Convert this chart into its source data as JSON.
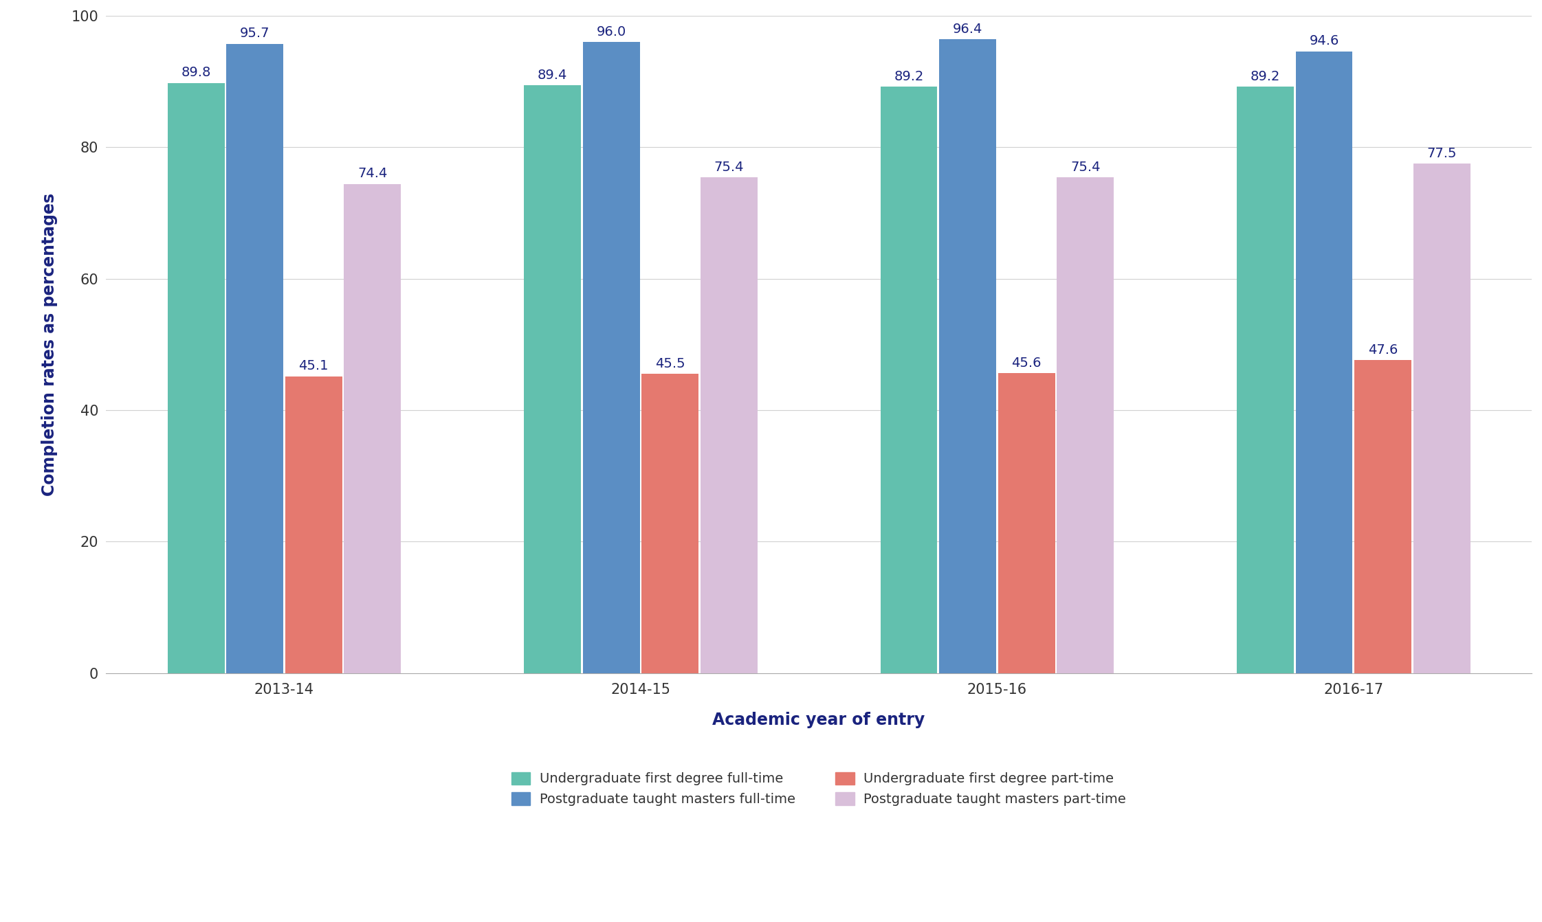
{
  "years": [
    "2013-14",
    "2014-15",
    "2015-16",
    "2016-17"
  ],
  "series": {
    "ug_fulltime": [
      89.8,
      89.4,
      89.2,
      89.2
    ],
    "pg_fulltime": [
      95.7,
      96.0,
      96.4,
      94.6
    ],
    "ug_parttime": [
      45.1,
      45.5,
      45.6,
      47.6
    ],
    "pg_parttime": [
      74.4,
      75.4,
      75.4,
      77.5
    ]
  },
  "colors": {
    "ug_fulltime": "#62c0ae",
    "pg_fulltime": "#5b8ec4",
    "ug_parttime": "#e5796f",
    "pg_parttime": "#d9bfda"
  },
  "legend_labels": {
    "ug_fulltime": "Undergraduate first degree full-time",
    "pg_fulltime": "Postgraduate taught masters full-time",
    "ug_parttime": "Undergraduate first degree part-time",
    "pg_parttime": "Postgraduate taught masters part-time"
  },
  "ylabel": "Completion rates as percentages",
  "xlabel": "Academic year of entry",
  "ylim": [
    0,
    100
  ],
  "yticks": [
    0,
    20,
    40,
    60,
    80,
    100
  ],
  "bar_width": 0.16,
  "axis_label_fontsize": 17,
  "tick_fontsize": 15,
  "legend_fontsize": 14,
  "value_fontsize": 14,
  "value_color": "#1a237e",
  "background_color": "#ffffff",
  "grid_color": "#d0d0d0",
  "xlabel_color": "#1a237e",
  "ylabel_color": "#1a237e"
}
